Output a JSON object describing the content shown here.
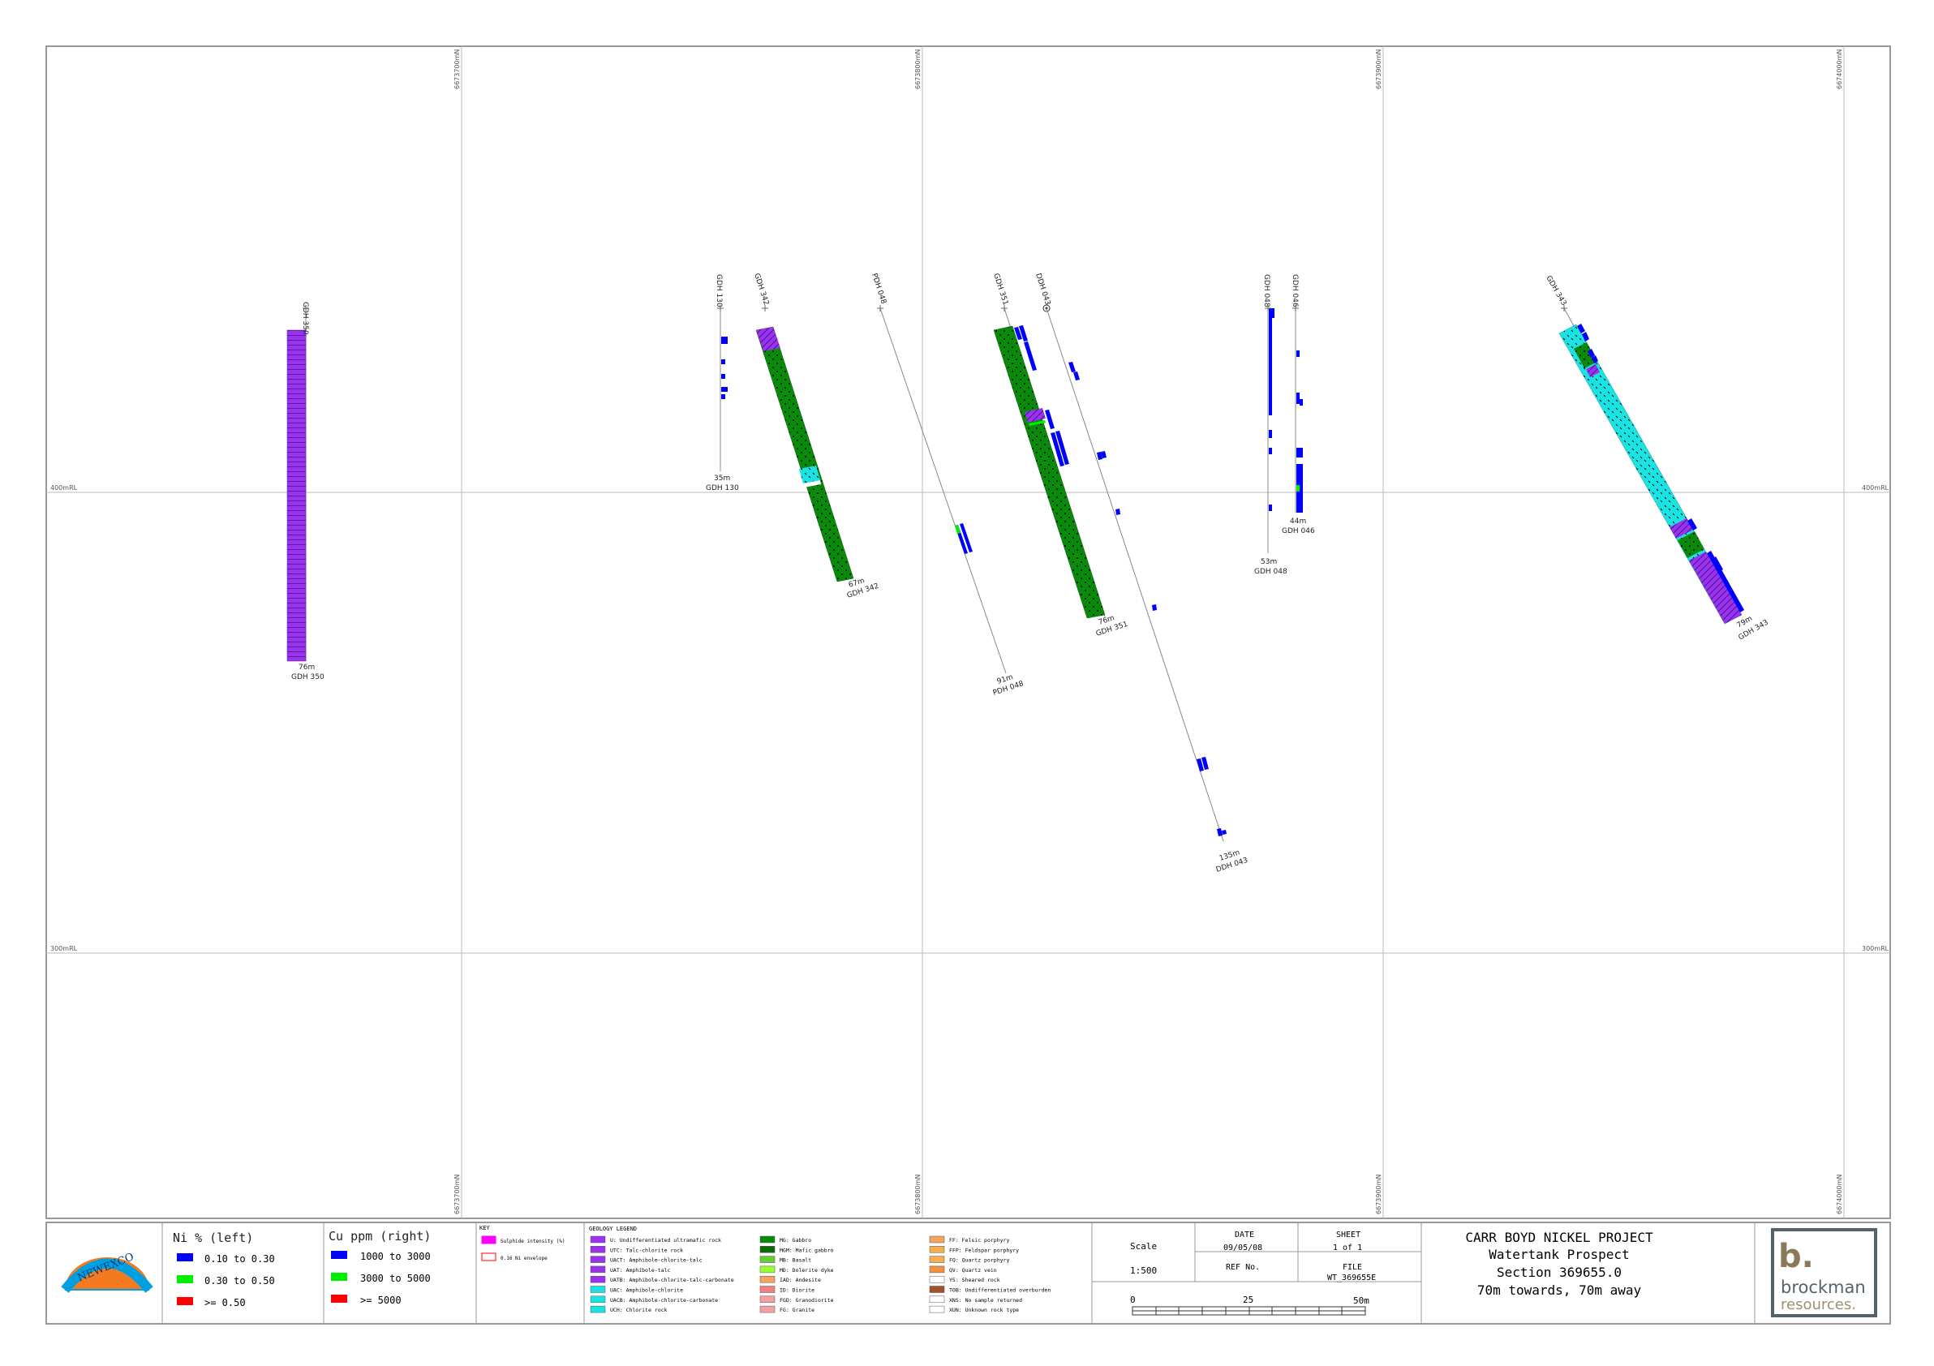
{
  "grid": {
    "eastings": [
      "6673700mN",
      "6673800mN",
      "6673900mN",
      "6674000mN"
    ],
    "rl_labels": [
      "400mRL",
      "300mRL"
    ]
  },
  "holes": [
    {
      "id": "GDH 350",
      "depth": "76m",
      "color": "#9933ee"
    },
    {
      "id": "GDH 130",
      "depth": "35m"
    },
    {
      "id": "GDH 342",
      "depth": "67m"
    },
    {
      "id": "PDH 048",
      "depth": "91m"
    },
    {
      "id": "GDH 351",
      "depth": "76m"
    },
    {
      "id": "DDH 043",
      "depth": "135m"
    },
    {
      "id": "GDH 048",
      "depth": "53m"
    },
    {
      "id": "GDH 046",
      "depth": "44m"
    },
    {
      "id": "GDH 343",
      "depth": "79m"
    }
  ],
  "colors": {
    "ultramafic": "#9933ee",
    "gabbro": "#0a8a0a",
    "chlorite": "#19e3e3",
    "assay_blue": "#0000ff",
    "assay_green": "#00ee00",
    "assay_red": "#ff0000",
    "frame": "#999999"
  },
  "logo": {
    "text": "NEWEXCO"
  },
  "ni_legend": {
    "title": "Ni % (left)",
    "items": [
      {
        "label": "0.10 to 0.30",
        "color": "#0000ff"
      },
      {
        "label": "0.30 to 0.50",
        "color": "#00ee00"
      },
      {
        "label": ">= 0.50",
        "color": "#ff0000"
      }
    ]
  },
  "cu_legend": {
    "title": "Cu ppm (right)",
    "items": [
      {
        "label": "1000 to 3000",
        "color": "#0000ff"
      },
      {
        "label": "3000 to 5000",
        "color": "#00ee00"
      },
      {
        "label": ">= 5000",
        "color": "#ff0000"
      }
    ]
  },
  "key": {
    "title": "KEY",
    "items": [
      {
        "label": "Sulphide intensity (%)",
        "fill": "#ff00ff",
        "stroke": "#ff00ff"
      },
      {
        "label": "0.16 Ni envelope",
        "fill": "#ffffff",
        "stroke": "#ff0000"
      }
    ]
  },
  "geology_legend": {
    "title": "GEOLOGY LEGEND",
    "col1": [
      {
        "label": "U: Undifferentiated ultramafic rock",
        "color": "#9933ee"
      },
      {
        "label": "UTC: Talc-chlorite rock",
        "color": "#9933ee"
      },
      {
        "label": "UACT: Amphibole-chlorite-talc",
        "color": "#9933ee"
      },
      {
        "label": "UAT: Amphibole-talc",
        "color": "#9933ee"
      },
      {
        "label": "UATB: Amphibole-chlorite-talc-carbonate",
        "color": "#9933ee"
      },
      {
        "label": "UAC: Amphibole-chlorite",
        "color": "#19e3e3"
      },
      {
        "label": "UACB: Amphibole-chlorite-carbonate",
        "color": "#19e3e3"
      },
      {
        "label": "UCH: Chlorite rock",
        "color": "#19e3e3"
      }
    ],
    "col2": [
      {
        "label": "MG: Gabbro",
        "color": "#0a8a0a"
      },
      {
        "label": "MGM: Mafic gabbro",
        "color": "#0a6a0a"
      },
      {
        "label": "MB: Basalt",
        "color": "#66cc33"
      },
      {
        "label": "MD: Dolerite dyke",
        "color": "#99ff33"
      },
      {
        "label": "IAD: Andesite",
        "color": "#f4a460"
      },
      {
        "label": "ID: Diorite",
        "color": "#f08080"
      },
      {
        "label": "FGD: Granodiorite",
        "color": "#f4a0a0"
      },
      {
        "label": "FG: Granite",
        "color": "#f4a0a0"
      }
    ],
    "col3": [
      {
        "label": "FF: Felsic porphyry",
        "color": "#f4a460"
      },
      {
        "label": "FFP: Feldspar porphyry",
        "color": "#f4b050"
      },
      {
        "label": "FQ: Quartz porphyry",
        "color": "#f4b050"
      },
      {
        "label": "QV: Quartz vein",
        "color": "#f49040"
      },
      {
        "label": "YS: Sheared rock",
        "color": "#ffffff"
      },
      {
        "label": "TOB: Undifferentiated overburden",
        "color": "#a0522d"
      },
      {
        "label": "XNS: No sample returned",
        "color": "#ffffff"
      },
      {
        "label": "XUN: Unknown rock type",
        "color": "#ffffff"
      }
    ]
  },
  "title_block": {
    "scale_label": "Scale",
    "scale_value": "1:500",
    "date_label": "DATE",
    "date_value": "09/05/08",
    "sheet_label": "SHEET",
    "sheet_value": "1 of 1",
    "ref_label": "REF No.",
    "file_label": "FILE",
    "file_value": "WT_369655E",
    "bar_0": "0",
    "bar_25": "25",
    "bar_50": "50m"
  },
  "project": {
    "line1": "CARR BOYD NICKEL PROJECT",
    "line2": "Watertank Prospect",
    "line3": "Section 369655.0",
    "line4": "70m towards, 70m away"
  },
  "brand": {
    "mark": "b.",
    "name1": "brockman",
    "name2": "resources."
  }
}
